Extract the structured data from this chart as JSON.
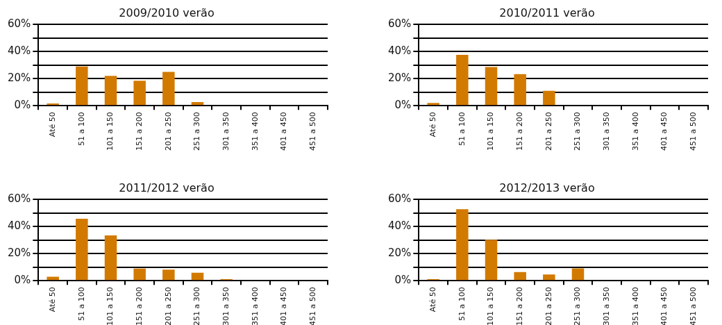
{
  "chart_data": [
    {
      "type": "bar",
      "title": "2009/2010 verão",
      "categories": [
        "Até 50",
        "51 a 100",
        "101 a 150",
        "151 a 200",
        "201 a 250",
        "251 a 300",
        "301 a 350",
        "351 a 400",
        "401 a 450",
        "451 a 500"
      ],
      "values": [
        1.7,
        29,
        22,
        18.4,
        25,
        2.7,
        0,
        0,
        0,
        0
      ],
      "color": "#d27a00",
      "ylim": [
        0,
        60
      ],
      "yticks": [
        {
          "value": 0,
          "label": "0%"
        },
        {
          "value": 10,
          "label": null
        },
        {
          "value": 20,
          "label": "20%"
        },
        {
          "value": 30,
          "label": null
        },
        {
          "value": 40,
          "label": "40%"
        },
        {
          "value": 50,
          "label": null
        },
        {
          "value": 60,
          "label": "60%"
        }
      ],
      "grid": "y"
    },
    {
      "type": "bar",
      "title": "2010/2011 verão",
      "categories": [
        "Até 50",
        "51 a 100",
        "101 a 150",
        "151 a 200",
        "201 a 250",
        "251 a 300",
        "301 a 350",
        "351 a 400",
        "401 a 450",
        "451 a 500"
      ],
      "values": [
        2,
        37.5,
        28.6,
        23.3,
        11,
        0,
        0,
        0,
        0,
        0
      ],
      "color": "#d27a00",
      "ylim": [
        0,
        60
      ],
      "yticks": [
        {
          "value": 0,
          "label": "0%"
        },
        {
          "value": 10,
          "label": null
        },
        {
          "value": 20,
          "label": "20%"
        },
        {
          "value": 30,
          "label": null
        },
        {
          "value": 40,
          "label": "40%"
        },
        {
          "value": 50,
          "label": null
        },
        {
          "value": 60,
          "label": "60%"
        }
      ],
      "grid": "y"
    },
    {
      "type": "bar",
      "title": "2011/2012 verão",
      "categories": [
        "Até 50",
        "51 a 100",
        "101 a 150",
        "151 a 200",
        "201 a 250",
        "251 a 300",
        "301 a 350",
        "351 a 400",
        "401 a 450",
        "451 a 500"
      ],
      "values": [
        3,
        45.7,
        33.4,
        9,
        8.2,
        5.9,
        1.2,
        0,
        0,
        0
      ],
      "color": "#d27a00",
      "ylim": [
        0,
        60
      ],
      "yticks": [
        {
          "value": 0,
          "label": "0%"
        },
        {
          "value": 10,
          "label": null
        },
        {
          "value": 20,
          "label": "20%"
        },
        {
          "value": 30,
          "label": null
        },
        {
          "value": 40,
          "label": "40%"
        },
        {
          "value": 50,
          "label": null
        },
        {
          "value": 60,
          "label": "60%"
        }
      ],
      "grid": "y"
    },
    {
      "type": "bar",
      "title": "2012/2013 verão",
      "categories": [
        "Até 50",
        "51 a 100",
        "101 a 150",
        "151 a 200",
        "201 a 250",
        "251 a 300",
        "301 a 350",
        "351 a 400",
        "401 a 450",
        "451 a 500"
      ],
      "values": [
        1.2,
        52.8,
        30.2,
        6.4,
        4.6,
        9.1,
        0,
        0,
        0,
        0
      ],
      "color": "#d27a00",
      "ylim": [
        0,
        60
      ],
      "yticks": [
        {
          "value": 0,
          "label": "0%"
        },
        {
          "value": 10,
          "label": null
        },
        {
          "value": 20,
          "label": "20%"
        },
        {
          "value": 30,
          "label": null
        },
        {
          "value": 40,
          "label": "40%"
        },
        {
          "value": 50,
          "label": null
        },
        {
          "value": 60,
          "label": "60%"
        }
      ],
      "grid": "y"
    }
  ]
}
